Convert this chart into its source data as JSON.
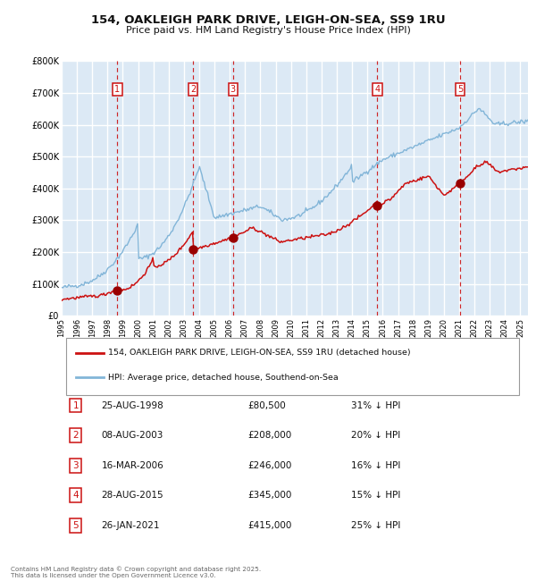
{
  "title": "154, OAKLEIGH PARK DRIVE, LEIGH-ON-SEA, SS9 1RU",
  "subtitle": "Price paid vs. HM Land Registry's House Price Index (HPI)",
  "background_color": "#ffffff",
  "plot_bg_color": "#dce9f5",
  "hpi_color": "#82b5d8",
  "price_color": "#cc1111",
  "marker_color": "#990000",
  "vline_color": "#cc1111",
  "grid_color": "#ffffff",
  "ylim": [
    0,
    800000
  ],
  "yticks": [
    0,
    100000,
    200000,
    300000,
    400000,
    500000,
    600000,
    700000,
    800000
  ],
  "ytick_labels": [
    "£0",
    "£100K",
    "£200K",
    "£300K",
    "£400K",
    "£500K",
    "£600K",
    "£700K",
    "£800K"
  ],
  "xmin": 1995,
  "xmax": 2025.5,
  "transactions": [
    {
      "num": 1,
      "date_str": "25-AUG-1998",
      "year": 1998.65,
      "price": 80500,
      "pct": "31%",
      "dir": "↓"
    },
    {
      "num": 2,
      "date_str": "08-AUG-2003",
      "year": 2003.6,
      "price": 208000,
      "pct": "20%",
      "dir": "↓"
    },
    {
      "num": 3,
      "date_str": "16-MAR-2006",
      "year": 2006.21,
      "price": 246000,
      "pct": "16%",
      "dir": "↓"
    },
    {
      "num": 4,
      "date_str": "28-AUG-2015",
      "year": 2015.65,
      "price": 345000,
      "pct": "15%",
      "dir": "↓"
    },
    {
      "num": 5,
      "date_str": "26-JAN-2021",
      "year": 2021.07,
      "price": 415000,
      "pct": "25%",
      "dir": "↓"
    }
  ],
  "legend_line1": "154, OAKLEIGH PARK DRIVE, LEIGH-ON-SEA, SS9 1RU (detached house)",
  "legend_line2": "HPI: Average price, detached house, Southend-on-Sea",
  "footnote": "Contains HM Land Registry data © Crown copyright and database right 2025.\nThis data is licensed under the Open Government Licence v3.0."
}
